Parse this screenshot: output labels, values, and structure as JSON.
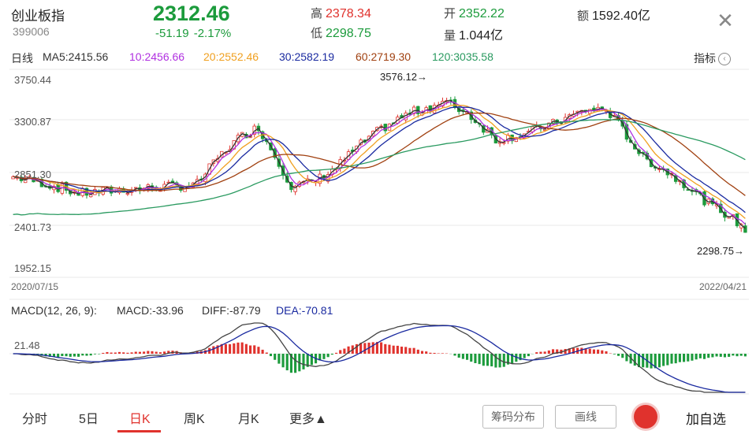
{
  "header": {
    "name": "创业板指",
    "code": "399006",
    "price": "2312.46",
    "change": "-51.19",
    "change_pct": "-2.17%",
    "high_label": "高",
    "high": "2378.34",
    "low_label": "低",
    "low": "2298.75",
    "open_label": "开",
    "open": "2352.22",
    "volume_label": "量",
    "volume": "1.044亿",
    "amount_label": "额",
    "amount": "1592.40亿",
    "close_icon": "close-icon",
    "colors": {
      "up": "#e0322d",
      "down": "#1c9b3c"
    }
  },
  "indicators_button": "指标",
  "ma": {
    "period_label": "日线",
    "ma5": "MA5:2415.56",
    "ma10": "10:2456.66",
    "ma20": "20:2552.46",
    "ma30": "30:2582.19",
    "ma60": "60:2719.30",
    "ma120": "120:3035.58",
    "colors": {
      "ma5": "#333333",
      "ma10": "#b030e0",
      "ma20": "#f0a020",
      "ma30": "#1a2aa0",
      "ma60": "#a04010",
      "ma120": "#2a9a60"
    }
  },
  "chart": {
    "y_ticks": [
      "3750.44",
      "3300.87",
      "2851.30",
      "2401.73",
      "1952.15"
    ],
    "start_date": "2020/07/15",
    "end_date": "2022/04/21",
    "max_label": "3576.12→",
    "min_label": "2298.75→"
  },
  "macd": {
    "title": "MACD(12, 26, 9):",
    "macd": "MACD:-33.96",
    "diff": "DIFF:-87.79",
    "dea": "DEA:-70.81",
    "axis_label": "21.48"
  },
  "chart_data": {
    "type": "candlestick",
    "x_range": [
      "2020/07/15",
      "2022/04/21"
    ],
    "ylim": [
      1952.15,
      3750.44
    ],
    "high": 3576.12,
    "low": 2298.75,
    "latest": {
      "price": 2312.46,
      "open": 2352.22,
      "high": 2378.34,
      "low": 2298.75
    },
    "ma_latest": {
      "MA5": 2415.56,
      "MA10": 2456.66,
      "MA20": 2552.46,
      "MA30": 2582.19,
      "MA60": 2719.3,
      "MA120": 3035.58
    },
    "macd_latest": {
      "MACD": -33.96,
      "DIFF": -87.79,
      "DEA": -70.81
    }
  },
  "tabs": [
    "分时",
    "5日",
    "日K",
    "周K",
    "月K",
    "更多▲"
  ],
  "active_tab": "日K",
  "buttons": {
    "chips": "筹码分布",
    "draw": "画线",
    "add": "加自选"
  }
}
